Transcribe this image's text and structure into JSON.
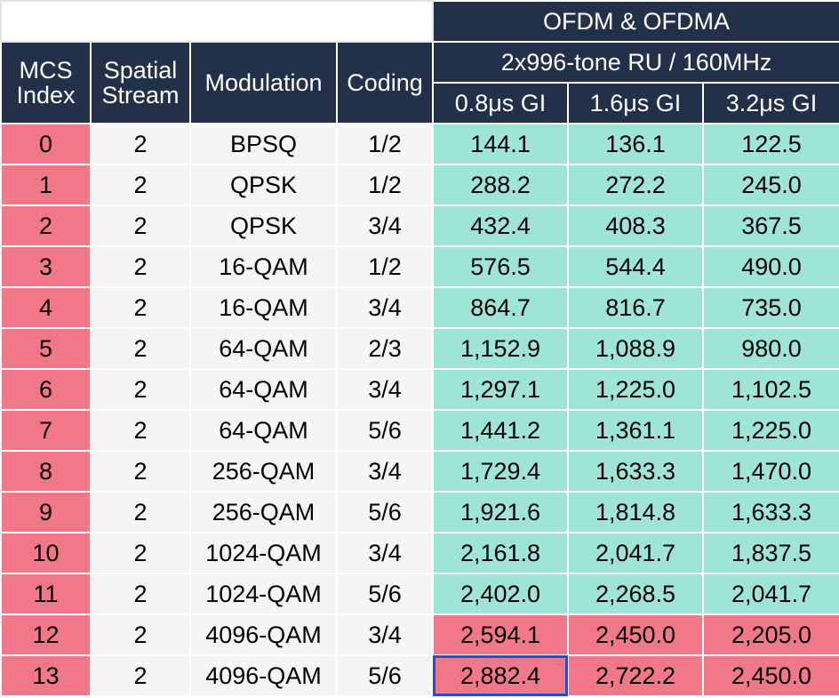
{
  "header": {
    "group_title": "OFDM & OFDMA",
    "subgroup_title": "2x996-tone RU / 160MHz",
    "col_mcs": [
      "MCS",
      "Index"
    ],
    "col_ss": [
      "Spatial",
      "Stream"
    ],
    "col_mod": "Modulation",
    "col_coding": "Coding",
    "gi": [
      "0.8μs GI",
      "1.6μs GI",
      "3.2μs GI"
    ]
  },
  "rows": [
    {
      "mcs": "0",
      "ss": "2",
      "mod": "BPSQ",
      "coding": "1/2",
      "r": [
        "144.1",
        "136.1",
        "122.5"
      ]
    },
    {
      "mcs": "1",
      "ss": "2",
      "mod": "QPSK",
      "coding": "1/2",
      "r": [
        "288.2",
        "272.2",
        "245.0"
      ]
    },
    {
      "mcs": "2",
      "ss": "2",
      "mod": "QPSK",
      "coding": "3/4",
      "r": [
        "432.4",
        "408.3",
        "367.5"
      ]
    },
    {
      "mcs": "3",
      "ss": "2",
      "mod": "16-QAM",
      "coding": "1/2",
      "r": [
        "576.5",
        "544.4",
        "490.0"
      ]
    },
    {
      "mcs": "4",
      "ss": "2",
      "mod": "16-QAM",
      "coding": "3/4",
      "r": [
        "864.7",
        "816.7",
        "735.0"
      ]
    },
    {
      "mcs": "5",
      "ss": "2",
      "mod": "64-QAM",
      "coding": "2/3",
      "r": [
        "1,152.9",
        "1,088.9",
        "980.0"
      ]
    },
    {
      "mcs": "6",
      "ss": "2",
      "mod": "64-QAM",
      "coding": "3/4",
      "r": [
        "1,297.1",
        "1,225.0",
        "1,102.5"
      ]
    },
    {
      "mcs": "7",
      "ss": "2",
      "mod": "64-QAM",
      "coding": "5/6",
      "r": [
        "1,441.2",
        "1,361.1",
        "1,225.0"
      ]
    },
    {
      "mcs": "8",
      "ss": "2",
      "mod": "256-QAM",
      "coding": "3/4",
      "r": [
        "1,729.4",
        "1,633.3",
        "1,470.0"
      ]
    },
    {
      "mcs": "9",
      "ss": "2",
      "mod": "256-QAM",
      "coding": "5/6",
      "r": [
        "1,921.6",
        "1,814.8",
        "1,633.3"
      ]
    },
    {
      "mcs": "10",
      "ss": "2",
      "mod": "1024-QAM",
      "coding": "3/4",
      "r": [
        "2,161.8",
        "2,041.7",
        "1,837.5"
      ]
    },
    {
      "mcs": "11",
      "ss": "2",
      "mod": "1024-QAM",
      "coding": "5/6",
      "r": [
        "2,402.0",
        "2,268.5",
        "2,041.7"
      ]
    },
    {
      "mcs": "12",
      "ss": "2",
      "mod": "4096-QAM",
      "coding": "3/4",
      "r": [
        "2,594.1",
        "2,450.0",
        "2,205.0"
      ]
    },
    {
      "mcs": "13",
      "ss": "2",
      "mod": "4096-QAM",
      "coding": "5/6",
      "r": [
        "2,882.4",
        "2,722.2",
        "2,450.0"
      ]
    }
  ],
  "colors": {
    "header_bg": "#22304a",
    "index_bg": "#f07888",
    "rate_bg": "#9ee5d7",
    "highlight_rate_bg": "#f07888",
    "selection_border": "#1f4fd8"
  },
  "selected_cell": "2,882.4"
}
